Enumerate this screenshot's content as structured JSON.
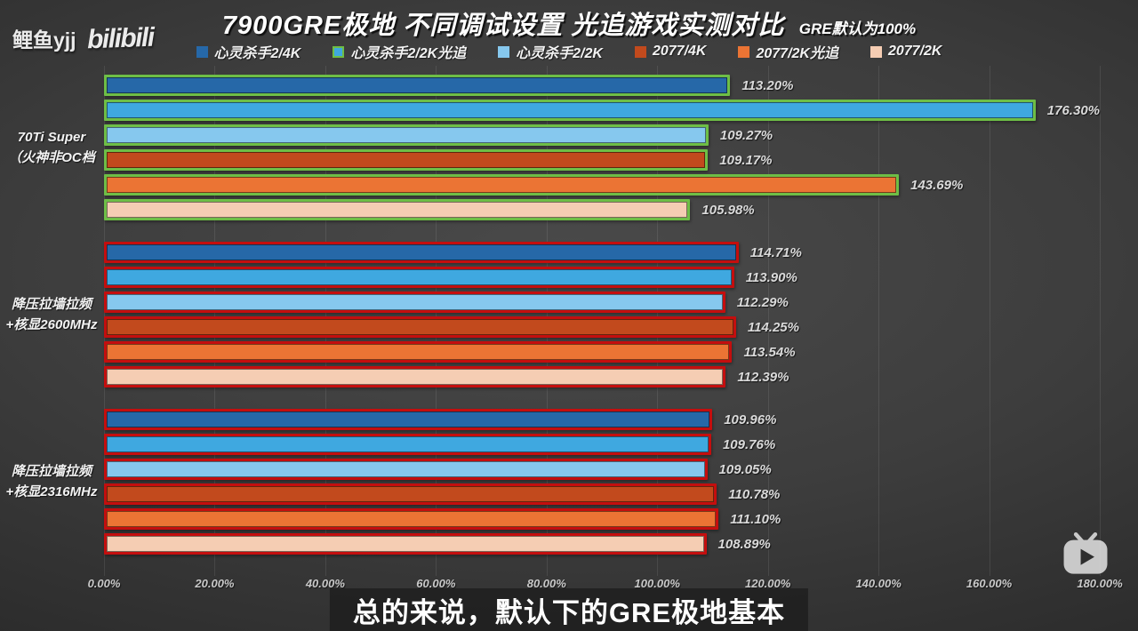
{
  "watermark": {
    "author": "鲤鱼yjj",
    "logo": "bilibili"
  },
  "title": {
    "main": "7900GRE极地 不同调试设置 光追游戏实测对比",
    "note": "GRE默认为100%"
  },
  "subtitle": {
    "text": "总的来说，默认下的GRE极地基本"
  },
  "chart_data": {
    "type": "bar",
    "orientation": "horizontal",
    "value_suffix": "%",
    "xlim": [
      0,
      180
    ],
    "x_ticks": [
      "0.00%",
      "20.00%",
      "40.00%",
      "60.00%",
      "80.00%",
      "100.00%",
      "120.00%",
      "140.00%",
      "160.00%",
      "180.00%"
    ],
    "grid": true,
    "legend_position": "top",
    "categories": [
      {
        "line1": "70Ti Super",
        "line2": "（火神非OC档",
        "bar_border": "#6EBE46"
      },
      {
        "line1": "降压拉墙拉频",
        "line2": "+核显2600MHz",
        "bar_border": "#C40E0E"
      },
      {
        "line1": "降压拉墙拉频",
        "line2": "+核显2316MHz",
        "bar_border": "#C40E0E"
      }
    ],
    "series": [
      {
        "name": "心灵杀手2/4K",
        "color": "#2668A8",
        "legend_border": null,
        "values": [
          113.2,
          114.71,
          109.96
        ]
      },
      {
        "name": "心灵杀手2/2K光追",
        "color": "#3FA8E0",
        "legend_border": "#6EBE46",
        "values": [
          176.3,
          113.9,
          109.76
        ]
      },
      {
        "name": "心灵杀手2/2K",
        "color": "#86C8EE",
        "legend_border": null,
        "values": [
          109.27,
          112.29,
          109.05
        ]
      },
      {
        "name": "2077/4K",
        "color": "#C24A1D",
        "legend_border": null,
        "values": [
          109.17,
          114.25,
          110.78
        ]
      },
      {
        "name": "2077/2K光追",
        "color": "#EB7434",
        "legend_border": null,
        "values": [
          143.69,
          113.54,
          111.1
        ]
      },
      {
        "name": "2077/2K",
        "color": "#F5CDB3",
        "legend_border": null,
        "values": [
          105.98,
          112.39,
          108.89
        ]
      }
    ]
  }
}
